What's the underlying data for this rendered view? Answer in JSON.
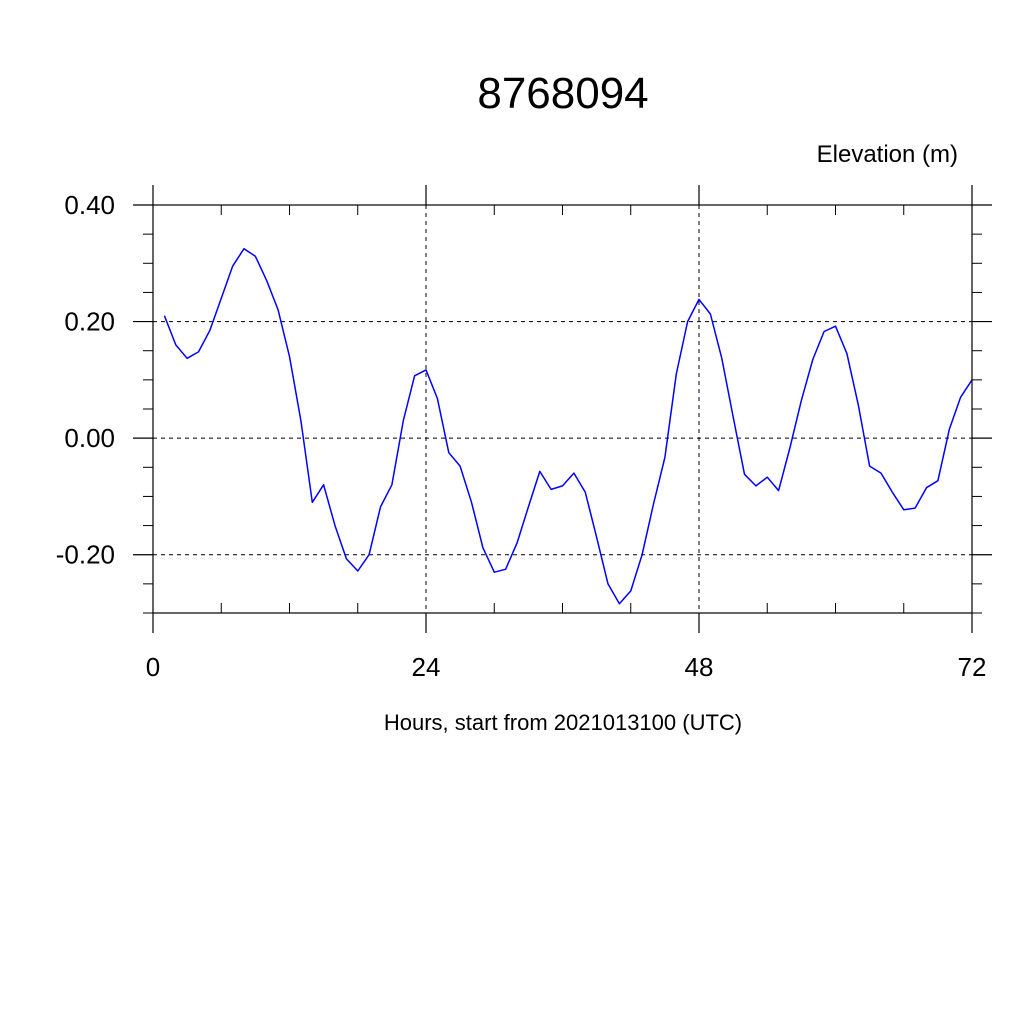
{
  "chart_data": {
    "type": "line",
    "title": "8768094",
    "ylabel": "Elevation (m)",
    "xlabel": "Hours, start from 2021013100 (UTC)",
    "xlim": [
      0,
      72
    ],
    "ylim": [
      -0.3,
      0.4
    ],
    "x_ticks": [
      0,
      24,
      48,
      72
    ],
    "x_tick_labels": [
      "0",
      "24",
      "48",
      "72"
    ],
    "y_ticks": [
      0.4,
      0.2,
      0.0,
      -0.2
    ],
    "y_tick_labels": [
      "0.40",
      "0.20",
      "0.00",
      "-0.20"
    ],
    "grid": true,
    "series": [
      {
        "color": "#0000ff",
        "x": [
          1,
          2,
          3,
          4,
          5,
          6,
          7,
          8,
          9,
          10,
          11,
          12,
          13,
          14,
          15,
          16,
          17,
          18,
          19,
          20,
          21,
          22,
          23,
          24,
          25,
          26,
          27,
          28,
          29,
          30,
          31,
          32,
          33,
          34,
          35,
          36,
          37,
          38,
          39,
          40,
          41,
          42,
          43,
          44,
          45,
          46,
          47,
          48,
          49,
          50,
          51,
          52,
          53,
          54,
          55,
          56,
          57,
          58,
          59,
          60,
          61,
          62,
          63,
          64,
          65,
          66,
          67,
          68,
          69,
          70,
          71,
          72
        ],
        "values": [
          0.21,
          0.16,
          0.137,
          0.148,
          0.185,
          0.24,
          0.295,
          0.325,
          0.312,
          0.27,
          0.22,
          0.14,
          0.03,
          -0.11,
          -0.08,
          -0.15,
          -0.207,
          -0.228,
          -0.2,
          -0.118,
          -0.08,
          0.03,
          0.107,
          0.117,
          0.068,
          -0.025,
          -0.048,
          -0.11,
          -0.188,
          -0.23,
          -0.225,
          -0.18,
          -0.118,
          -0.057,
          -0.088,
          -0.082,
          -0.06,
          -0.093,
          -0.17,
          -0.25,
          -0.284,
          -0.262,
          -0.2,
          -0.113,
          -0.033,
          0.11,
          0.2,
          0.238,
          0.213,
          0.137,
          0.037,
          -0.062,
          -0.082,
          -0.067,
          -0.09,
          -0.016,
          0.065,
          0.135,
          0.183,
          0.192,
          0.145,
          0.057,
          -0.048,
          -0.06,
          -0.093,
          -0.123,
          -0.12,
          -0.085,
          -0.073,
          0.015,
          0.07,
          0.1
        ]
      }
    ]
  }
}
